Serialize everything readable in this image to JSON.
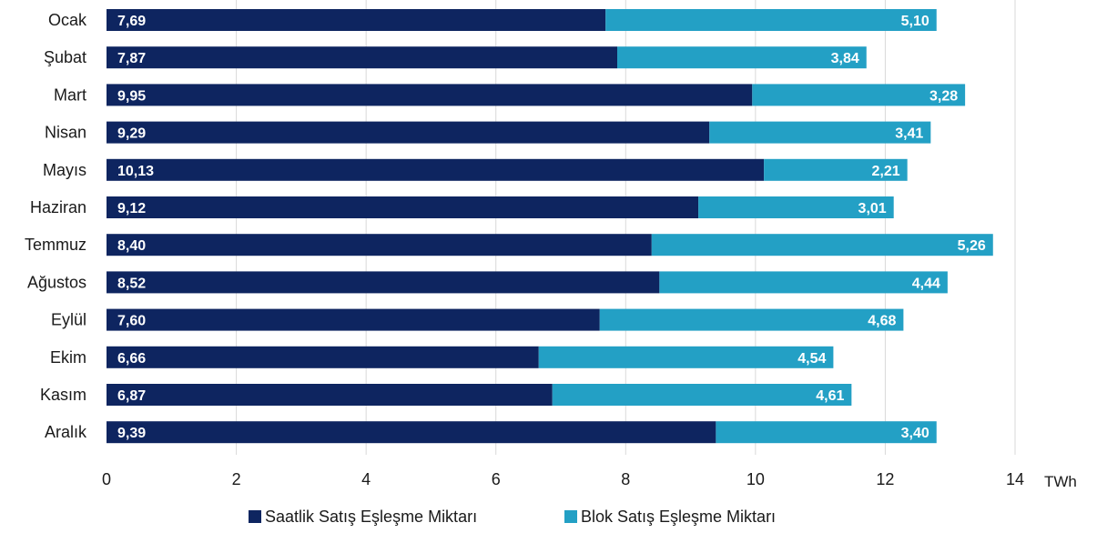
{
  "chart_data": {
    "type": "bar",
    "orientation": "horizontal",
    "stacked": true,
    "categories": [
      "Ocak",
      "Şubat",
      "Mart",
      "Nisan",
      "Mayıs",
      "Haziran",
      "Temmuz",
      "Ağustos",
      "Eylül",
      "Ekim",
      "Kasım",
      "Aralık"
    ],
    "series": [
      {
        "name": "Saatlik Satış Eşleşme Miktarı",
        "color": "#0e2560",
        "values": [
          7.69,
          7.87,
          9.95,
          9.29,
          10.13,
          9.12,
          8.4,
          8.52,
          7.6,
          6.66,
          6.87,
          9.39
        ],
        "labels": [
          "7,69",
          "7,87",
          "9,95",
          "9,29",
          "10,13",
          "9,12",
          "8,40",
          "8,52",
          "7,60",
          "6,66",
          "6,87",
          "9,39"
        ]
      },
      {
        "name": "Blok Satış Eşleşme Miktarı",
        "color": "#23a0c5",
        "values": [
          5.1,
          3.84,
          3.28,
          3.41,
          2.21,
          3.01,
          5.26,
          4.44,
          4.68,
          4.54,
          4.61,
          3.4
        ],
        "labels": [
          "5,10",
          "3,84",
          "3,28",
          "3,41",
          "2,21",
          "3,01",
          "5,26",
          "4,44",
          "4,68",
          "4,54",
          "4,61",
          "3,40"
        ]
      }
    ],
    "xlim": [
      0,
      14
    ],
    "xticks": [
      0,
      2,
      4,
      6,
      8,
      10,
      12,
      14
    ],
    "xunit": "TWh",
    "grid": true,
    "legend_position": "bottom"
  }
}
